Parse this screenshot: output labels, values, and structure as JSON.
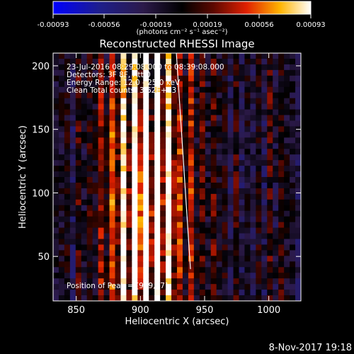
{
  "colorbar": {
    "tick_labels": [
      "-0.00093",
      "-0.00056",
      "-0.00019",
      "0.00019",
      "0.00056",
      "0.00093"
    ],
    "unit_label": "(photons cm⁻² s⁻¹ asec⁻²)",
    "min": -0.00093,
    "max": 0.00093
  },
  "annotations": {
    "time_range": "23-Jul-2016 08:29:08.000 to 08:39:08.000",
    "detectors": "Detectors: 3F 8F, Att 0",
    "energy": "Energy Range: 12.0 - 25.0 keV",
    "clean": "Clean    Total counts: 3.62E+03",
    "peak": "Position of Peak = [909,87]"
  },
  "footer": {
    "date": "8-Nov-2017 19:18"
  },
  "chart_data": {
    "type": "heatmap",
    "title": "Reconstructed RHESSI Image",
    "xlabel": "Heliocentric X (arcsec)",
    "ylabel": "Heliocentric Y (arcsec)",
    "xlim": [
      832,
      1025
    ],
    "ylim": [
      15,
      210
    ],
    "x_ticks": [
      850,
      900,
      950,
      1000
    ],
    "y_ticks": [
      50,
      100,
      150,
      200
    ],
    "peak": [
      909,
      87
    ],
    "limb_line": [
      [
        928,
        210
      ],
      [
        939,
        40
      ]
    ],
    "grid": false,
    "legend": "colorbar top"
  }
}
